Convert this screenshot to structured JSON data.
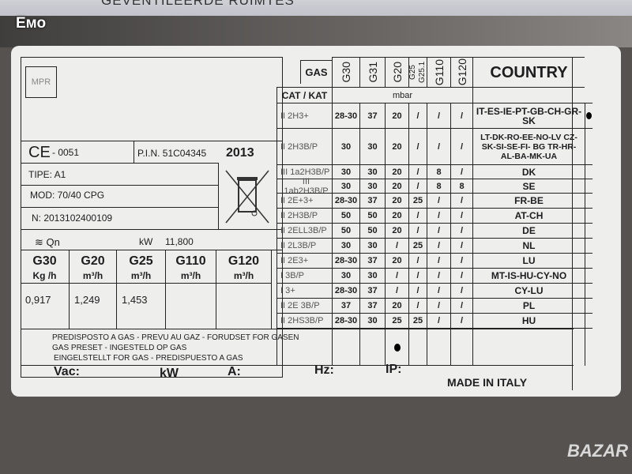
{
  "background_sign_text": "GEVENTILEERDE RUIMTES",
  "watermark": "Емо",
  "corner_logo": "BAZAR",
  "label": {
    "logo": "MPR",
    "ce_mark": "CE",
    "ce_number": "- 0051",
    "pin": "P.I.N. 51C04345",
    "year": "2013",
    "type": "TIPE: A1",
    "model": "MOD: 70/40 CPG",
    "serial": "N: 2013102400109",
    "qn_label": "Qn",
    "qn_unit": "kW",
    "qn_value": "11,800",
    "consumption": [
      {
        "gas": "G30",
        "unit": "Kg /h",
        "value": "0,917"
      },
      {
        "gas": "G20",
        "unit": "m³/h",
        "value": "1,249"
      },
      {
        "gas": "G25",
        "unit": "m³/h",
        "value": "1,453"
      },
      {
        "gas": "G110",
        "unit": "m³/h",
        "value": ""
      },
      {
        "gas": "G120",
        "unit": "m³/h",
        "value": ""
      }
    ],
    "preset_lines": [
      "PREDISPOSTO A GAS - PREVU AU GAZ - FORUDSET FOR GASEN",
      "GAS PRESET - INGESTELD OP GAS",
      "EINGELSTELLT FOR GAS - PREDISPUESTO A GAS"
    ],
    "electrical": {
      "vac": "Vac:",
      "kw": "kW",
      "a": "A:",
      "hz": "Hz:",
      "ip": "IP:"
    },
    "made_in": "MADE IN ITALY",
    "table": {
      "gas_header": "GAS",
      "cat_header": "CAT / KAT",
      "unit": "mbar",
      "country_header": "COUNTRY",
      "gases": [
        "G30",
        "G31",
        "G20",
        "G25 G25.1",
        "G110",
        "G120"
      ],
      "rows": [
        {
          "cat": "II 2H3+",
          "values": [
            "28-30",
            "37",
            "20",
            "/",
            "/",
            "/"
          ],
          "country": "IT-ES-IE-PT-GB-CH-GR-SK",
          "selected": true
        },
        {
          "cat": "II 2H3B/P",
          "values": [
            "30",
            "30",
            "20",
            "/",
            "/",
            "/"
          ],
          "country": "LT-DK-RO-EE-NO-LV CZ-SK-SI-SE-FI- BG TR-HR-AL-BA-MK-UA"
        },
        {
          "cat": "III 1a2H3B/P",
          "values": [
            "30",
            "30",
            "20",
            "/",
            "8",
            "/"
          ],
          "country": "DK"
        },
        {
          "cat": "III 1ab2H3B/P",
          "values": [
            "30",
            "30",
            "20",
            "/",
            "8",
            "8"
          ],
          "country": "SE"
        },
        {
          "cat": "II 2E+3+",
          "values": [
            "28-30",
            "37",
            "20",
            "25",
            "/",
            "/"
          ],
          "country": "FR-BE"
        },
        {
          "cat": "II 2H3B/P",
          "values": [
            "50",
            "50",
            "20",
            "/",
            "/",
            "/"
          ],
          "country": "AT-CH"
        },
        {
          "cat": "II 2ELL3B/P",
          "values": [
            "50",
            "50",
            "20",
            "/",
            "/",
            "/"
          ],
          "country": "DE"
        },
        {
          "cat": "II 2L3B/P",
          "values": [
            "30",
            "30",
            "/",
            "25",
            "/",
            "/"
          ],
          "country": "NL"
        },
        {
          "cat": "II 2E3+",
          "values": [
            "28-30",
            "37",
            "20",
            "/",
            "/",
            "/"
          ],
          "country": "LU"
        },
        {
          "cat": "I 3B/P",
          "values": [
            "30",
            "30",
            "/",
            "/",
            "/",
            "/"
          ],
          "country": "MT-IS-HU-CY-NO"
        },
        {
          "cat": "I 3+",
          "values": [
            "28-30",
            "37",
            "/",
            "/",
            "/",
            "/"
          ],
          "country": "CY-LU"
        },
        {
          "cat": "II 2E 3B/P",
          "values": [
            "37",
            "37",
            "20",
            "/",
            "/",
            "/"
          ],
          "country": "PL"
        },
        {
          "cat": "II 2HS3B/P",
          "values": [
            "28-30",
            "30",
            "25",
            "25",
            "/",
            "/"
          ],
          "country": "HU"
        }
      ]
    }
  }
}
